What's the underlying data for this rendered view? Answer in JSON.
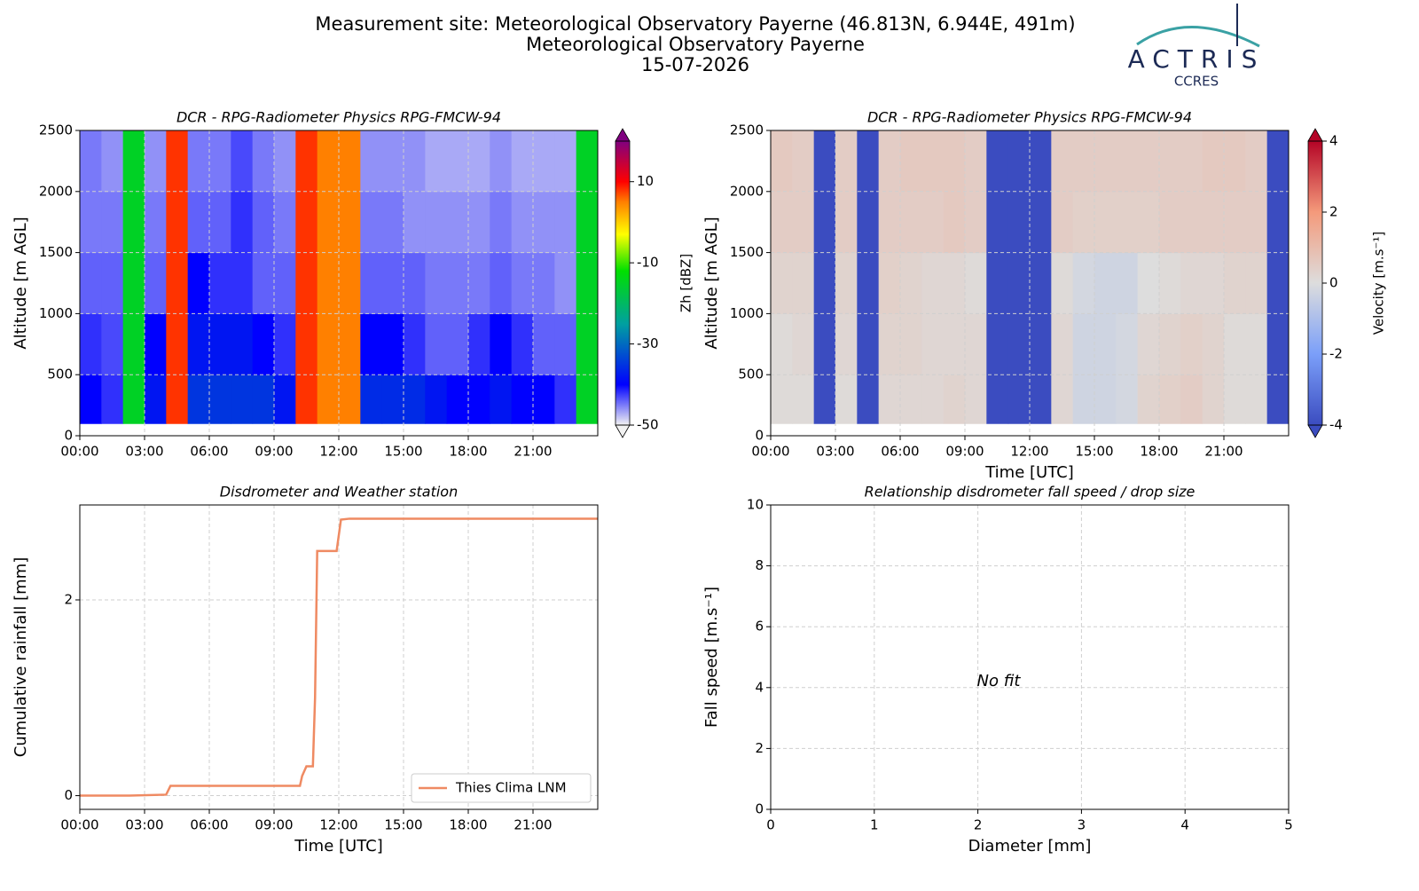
{
  "header": {
    "lines": [
      "Measurement site: Meteorological Observatory Payerne (46.813N, 6.944E, 491m)",
      "Meteorological Observatory Payerne",
      "15-07-2026"
    ]
  },
  "logo": {
    "name": "ACTRIS",
    "sub": "CCRES"
  },
  "chart_data": [
    {
      "type": "heatmap",
      "title": "DCR - RPG-Radiometer Physics RPG-FMCW-94",
      "ylabel": "Altitude [m AGL]",
      "xlim": [
        0,
        24
      ],
      "xticks": [
        {
          "value": 0,
          "label": "00:00"
        },
        {
          "value": 3,
          "label": "03:00"
        },
        {
          "value": 6,
          "label": "06:00"
        },
        {
          "value": 9,
          "label": "09:00"
        },
        {
          "value": 12,
          "label": "12:00"
        },
        {
          "value": 15,
          "label": "15:00"
        },
        {
          "value": 18,
          "label": "18:00"
        },
        {
          "value": 21,
          "label": "21:00"
        }
      ],
      "ylim": [
        0,
        2500
      ],
      "yticks": [
        0,
        500,
        1000,
        1500,
        2000,
        2500
      ],
      "grid": true,
      "x_edges": [
        0,
        1,
        2,
        3,
        4,
        5,
        6,
        7,
        8,
        9,
        10,
        11,
        12,
        13,
        14,
        15,
        16,
        17,
        18,
        19,
        20,
        21,
        22,
        23,
        24
      ],
      "y_edges": [
        100,
        500,
        1000,
        1500,
        2000,
        2500
      ],
      "z": [
        [
          -40,
          -42,
          -15,
          -38,
          8,
          -35,
          -35,
          -35,
          -35,
          -38,
          8,
          5,
          5,
          -36,
          -36,
          -36,
          -38,
          -40,
          -40,
          -38,
          -40,
          -40,
          -42,
          -15
        ],
        [
          -42,
          -43,
          -15,
          -40,
          8,
          -38,
          -38,
          -38,
          -40,
          -42,
          8,
          5,
          5,
          -40,
          -40,
          -42,
          -44,
          -44,
          -42,
          -40,
          -42,
          -44,
          -44,
          -15
        ],
        [
          -44,
          -44,
          -15,
          -44,
          8,
          -40,
          -42,
          -42,
          -44,
          -44,
          8,
          5,
          5,
          -44,
          -44,
          -44,
          -45,
          -45,
          -45,
          -44,
          -45,
          -45,
          -46,
          -15
        ],
        [
          -45,
          -45,
          -15,
          -45,
          8,
          -44,
          -44,
          -42,
          -44,
          -45,
          8,
          5,
          5,
          -45,
          -45,
          -46,
          -46,
          -46,
          -46,
          -45,
          -46,
          -46,
          -46,
          -15
        ],
        [
          -45,
          -46,
          -15,
          -46,
          8,
          -45,
          -45,
          -43,
          -45,
          -46,
          8,
          5,
          5,
          -46,
          -46,
          -46,
          -47,
          -47,
          -47,
          -46,
          -47,
          -47,
          -47,
          -15
        ]
      ],
      "clim": [
        -50,
        20
      ],
      "cticks": [
        -50,
        -30,
        -10,
        10
      ],
      "extend": "both",
      "colorbar_label": "Zh [dBZ]",
      "colorscale": [
        [
          -50,
          "#f2f2f2"
        ],
        [
          -40,
          "#0000ff"
        ],
        [
          -25,
          "#00a0a0"
        ],
        [
          -12,
          "#00e000"
        ],
        [
          -3,
          "#ffff00"
        ],
        [
          5,
          "#ff8000"
        ],
        [
          10,
          "#ff0000"
        ],
        [
          20,
          "#800080"
        ]
      ]
    },
    {
      "type": "heatmap",
      "title": "DCR - RPG-Radiometer Physics RPG-FMCW-94",
      "ylabel": "Altitude [m AGL]",
      "xlabel": "Time [UTC]",
      "xlim": [
        0,
        24
      ],
      "xticks": [
        {
          "value": 0,
          "label": "00:00"
        },
        {
          "value": 3,
          "label": "03:00"
        },
        {
          "value": 6,
          "label": "06:00"
        },
        {
          "value": 9,
          "label": "09:00"
        },
        {
          "value": 12,
          "label": "12:00"
        },
        {
          "value": 15,
          "label": "15:00"
        },
        {
          "value": 18,
          "label": "18:00"
        },
        {
          "value": 21,
          "label": "21:00"
        }
      ],
      "ylim": [
        0,
        2500
      ],
      "yticks": [
        0,
        500,
        1000,
        1500,
        2000,
        2500
      ],
      "grid": true,
      "x_edges": [
        0,
        1,
        2,
        3,
        4,
        5,
        6,
        7,
        8,
        9,
        10,
        11,
        12,
        13,
        14,
        15,
        16,
        17,
        18,
        19,
        20,
        21,
        22,
        23,
        24
      ],
      "y_edges": [
        100,
        500,
        1000,
        1500,
        2000,
        2500
      ],
      "z": [
        [
          0.1,
          0.1,
          -4,
          0.1,
          -4,
          0.2,
          0.2,
          0.2,
          0.3,
          0.2,
          -4,
          -4,
          -4,
          0.2,
          -0.3,
          -0.3,
          -0.2,
          0.3,
          0.4,
          0.5,
          0.3,
          0.1,
          0.1,
          -4
        ],
        [
          0.1,
          0.2,
          -4,
          0.2,
          -4,
          0.3,
          0.3,
          0.2,
          0.2,
          0.2,
          -4,
          -4,
          -4,
          0.2,
          -0.3,
          -0.3,
          -0.2,
          0.2,
          0.3,
          0.4,
          0.3,
          0.1,
          0.1,
          -4
        ],
        [
          0.3,
          0.3,
          -4,
          0.3,
          -4,
          0.4,
          0.3,
          0.2,
          0.2,
          0.1,
          -4,
          -4,
          -4,
          0.1,
          -0.2,
          -0.3,
          -0.3,
          0,
          0.1,
          0.2,
          0.2,
          0.3,
          0.3,
          -4
        ],
        [
          0.5,
          0.5,
          -4,
          0.5,
          -4,
          0.5,
          0.5,
          0.5,
          0.6,
          0.5,
          -4,
          -4,
          -4,
          0.5,
          0.4,
          0.4,
          0.4,
          0.4,
          0.5,
          0.5,
          0.5,
          0.5,
          0.5,
          -4
        ],
        [
          0.6,
          0.5,
          -4,
          0.5,
          -4,
          0.5,
          0.6,
          0.6,
          0.6,
          0.5,
          -4,
          -4,
          -4,
          0.5,
          0.5,
          0.5,
          0.5,
          0.5,
          0.5,
          0.5,
          0.6,
          0.6,
          0.5,
          -4
        ]
      ],
      "clim": [
        -4,
        4
      ],
      "cticks": [
        -4,
        -2,
        0,
        2,
        4
      ],
      "extend": "both",
      "colorbar_label": "Velocity [m.s⁻¹]",
      "colorscale": [
        [
          -4,
          "#3b4cc0"
        ],
        [
          -2,
          "#7b9ff9"
        ],
        [
          0,
          "#dddddd"
        ],
        [
          2,
          "#f49a7b"
        ],
        [
          4,
          "#b40426"
        ]
      ]
    },
    {
      "type": "line",
      "title": "Disdrometer and Weather station",
      "ylabel": "Cumulative rainfall [mm]",
      "xlabel": "Time [UTC]",
      "xlim": [
        0,
        24
      ],
      "xticks": [
        {
          "value": 0,
          "label": "00:00"
        },
        {
          "value": 3,
          "label": "03:00"
        },
        {
          "value": 6,
          "label": "06:00"
        },
        {
          "value": 9,
          "label": "09:00"
        },
        {
          "value": 12,
          "label": "12:00"
        },
        {
          "value": 15,
          "label": "15:00"
        },
        {
          "value": 18,
          "label": "18:00"
        },
        {
          "value": 21,
          "label": "21:00"
        }
      ],
      "ylim": [
        -0.14,
        2.97
      ],
      "yticks": [
        0,
        2
      ],
      "grid": true,
      "legend": "lower right",
      "x": [
        0,
        2.3,
        4.0,
        4.2,
        10.2,
        10.3,
        10.5,
        10.8,
        10.9,
        11.0,
        11.9,
        12.1,
        12.5,
        24
      ],
      "series": [
        {
          "name": "Thies Clima LNM",
          "color": "#ef8a62",
          "values": [
            0,
            0,
            0.01,
            0.1,
            0.1,
            0.2,
            0.3,
            0.3,
            1.0,
            2.5,
            2.5,
            2.82,
            2.83,
            2.83
          ]
        }
      ]
    },
    {
      "type": "scatter",
      "title": "Relationship disdrometer fall speed / drop size",
      "ylabel": "Fall speed [m.s⁻¹]",
      "xlabel": "Diameter [mm]",
      "xlim": [
        0,
        5
      ],
      "xticks": [
        0,
        1,
        2,
        3,
        4,
        5
      ],
      "ylim": [
        0,
        10
      ],
      "yticks": [
        0,
        2,
        4,
        6,
        8,
        10
      ],
      "grid": true,
      "annotation": "No fit"
    }
  ]
}
